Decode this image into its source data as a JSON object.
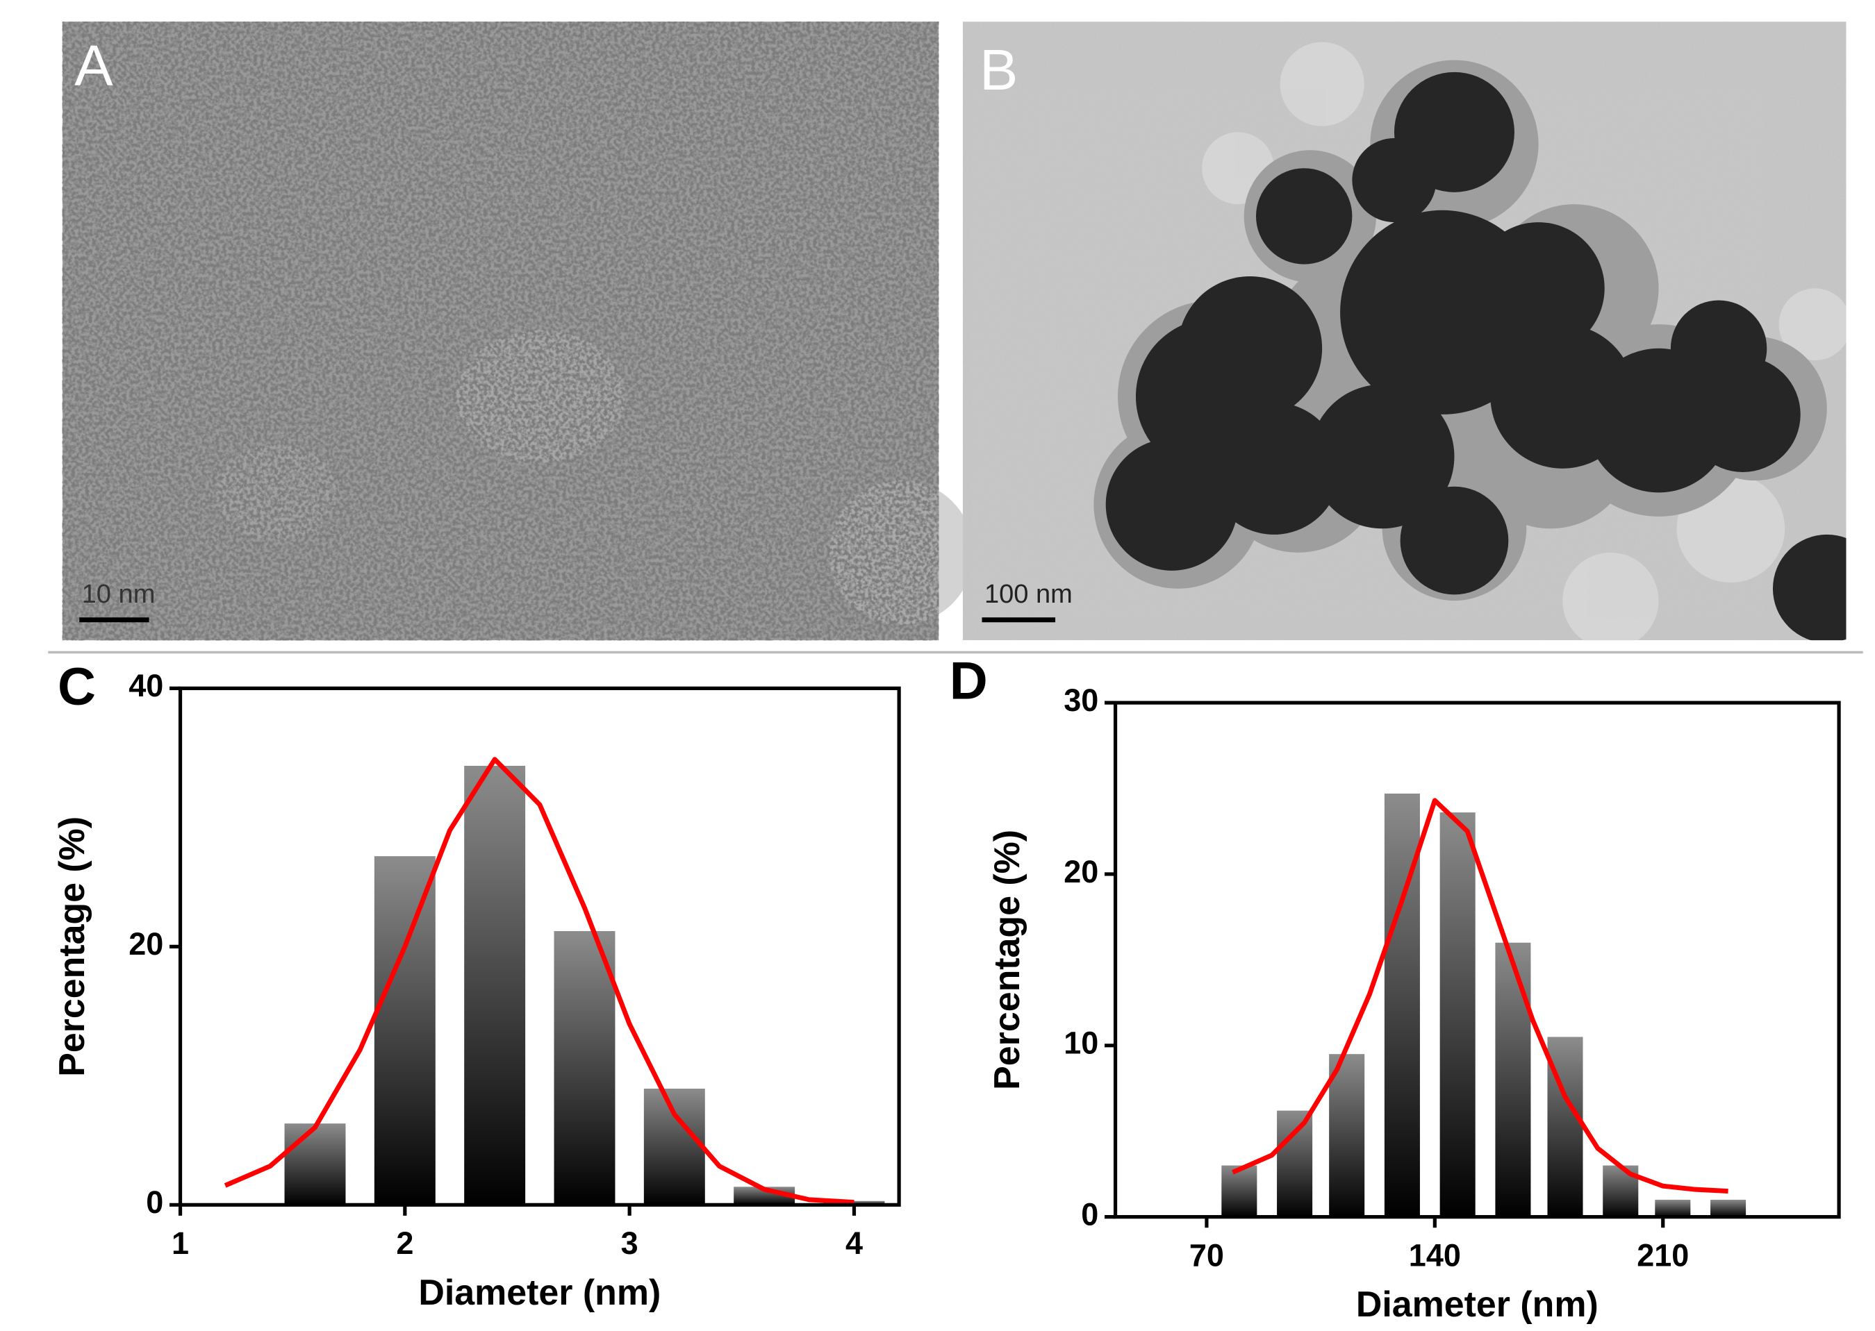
{
  "images": [
    {
      "label": "A",
      "scale": "10 nm"
    },
    {
      "label": "B",
      "scale": "100 nm"
    }
  ],
  "chart_data": [
    {
      "type": "bar",
      "label": "C",
      "xlabel": "Diameter (nm)",
      "ylabel": "Percentage (%)",
      "xlim": [
        1,
        4.2
      ],
      "xticks": [
        1,
        2,
        3,
        4
      ],
      "ylim": [
        0,
        40
      ],
      "yticks": [
        0,
        20,
        40
      ],
      "series": [
        {
          "type": "bar",
          "color": "#8c8c8c",
          "x": [
            1.6,
            2.0,
            2.4,
            2.8,
            3.2,
            3.6,
            4.0
          ],
          "values": [
            6.3,
            27,
            34,
            21.2,
            9,
            1.4,
            0.3
          ]
        },
        {
          "type": "line",
          "color": "#ff0000",
          "x": [
            1.2,
            1.4,
            1.6,
            1.8,
            2.0,
            2.2,
            2.4,
            2.6,
            2.8,
            3.0,
            3.2,
            3.4,
            3.6,
            3.8,
            4.0
          ],
          "values": [
            1.5,
            3,
            6,
            12,
            20,
            29,
            34.5,
            31,
            23,
            14,
            7,
            3,
            1.2,
            0.4,
            0.2
          ]
        }
      ]
    },
    {
      "type": "bar",
      "label": "D",
      "xlabel": "Diameter (nm)",
      "ylabel": "Percentage (%)",
      "xlim": [
        42,
        264
      ],
      "xticks": [
        70,
        140,
        210
      ],
      "ylim": [
        0,
        30
      ],
      "yticks": [
        0,
        10,
        20,
        30
      ],
      "series": [
        {
          "type": "bar",
          "color": "#8c8c8c",
          "x": [
            80,
            97,
            113,
            130,
            147,
            164,
            180,
            197,
            213,
            230
          ],
          "values": [
            3,
            6.2,
            9.5,
            24.7,
            23.6,
            16,
            10.5,
            3,
            1,
            1
          ]
        },
        {
          "type": "line",
          "color": "#ff0000",
          "x": [
            78,
            90,
            100,
            110,
            120,
            130,
            140,
            150,
            160,
            170,
            180,
            190,
            200,
            210,
            220,
            230
          ],
          "values": [
            2.6,
            3.6,
            5.5,
            8.6,
            13,
            18.5,
            24.3,
            22.5,
            17,
            11.5,
            7,
            4,
            2.5,
            1.8,
            1.6,
            1.5
          ]
        }
      ]
    }
  ]
}
